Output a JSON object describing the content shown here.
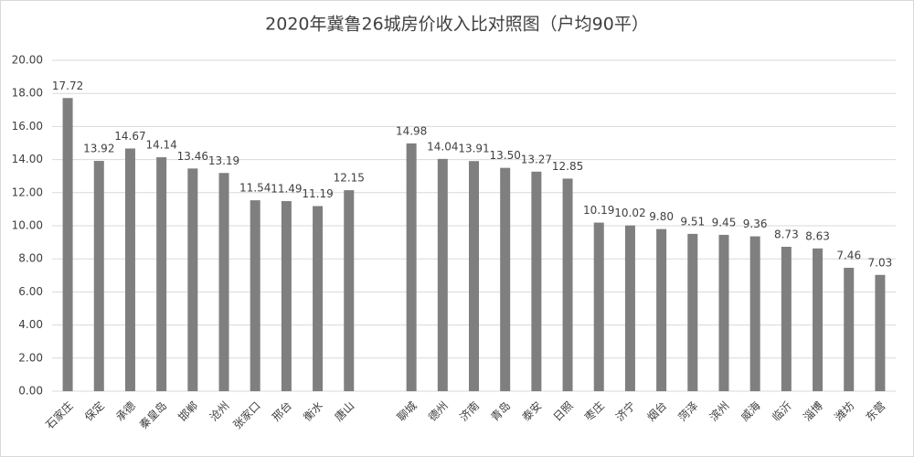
{
  "chart_data": {
    "type": "bar",
    "title": "2020年冀鲁26城房价收入比对照图（户均90平）",
    "categories": [
      "石家庄",
      "保定",
      "承德",
      "秦皇岛",
      "邯郸",
      "沧州",
      "张家口",
      "邢台",
      "衡水",
      "唐山",
      null,
      "聊城",
      "德州",
      "济南",
      "青岛",
      "泰安",
      "日照",
      "枣庄",
      "济宁",
      "烟台",
      "菏泽",
      "滨州",
      "威海",
      "临沂",
      "淄博",
      "潍坊",
      "东营"
    ],
    "values": [
      17.72,
      13.92,
      14.67,
      14.14,
      13.46,
      13.19,
      11.54,
      11.49,
      11.19,
      12.15,
      null,
      14.98,
      14.04,
      13.91,
      13.5,
      13.27,
      12.85,
      10.19,
      10.02,
      9.8,
      9.51,
      9.45,
      9.36,
      8.73,
      8.63,
      7.46,
      7.03
    ],
    "value_labels": [
      "17.72",
      "13.92",
      "14.67",
      "14.14",
      "13.46",
      "13.19",
      "11.54",
      "11.49",
      "11.19",
      "12.15",
      null,
      "14.98",
      "14.04",
      "13.91",
      "13.50",
      "13.27",
      "12.85",
      "10.19",
      "10.02",
      "9.80",
      "9.51",
      "9.45",
      "9.36",
      "8.73",
      "8.63",
      "7.46",
      "7.03"
    ],
    "color": "#7f7f7f",
    "ylim": [
      0,
      20
    ],
    "yticks": [
      {
        "value": 0,
        "label": "0.00"
      },
      {
        "value": 2,
        "label": "2.00"
      },
      {
        "value": 4,
        "label": "4.00"
      },
      {
        "value": 6,
        "label": "6.00"
      },
      {
        "value": 8,
        "label": "8.00"
      },
      {
        "value": 10,
        "label": "10.00"
      },
      {
        "value": 12,
        "label": "12.00"
      },
      {
        "value": 14,
        "label": "14.00"
      },
      {
        "value": 16,
        "label": "16.00"
      },
      {
        "value": 18,
        "label": "18.00"
      },
      {
        "value": 20,
        "label": "20.00"
      }
    ],
    "grid": true
  }
}
